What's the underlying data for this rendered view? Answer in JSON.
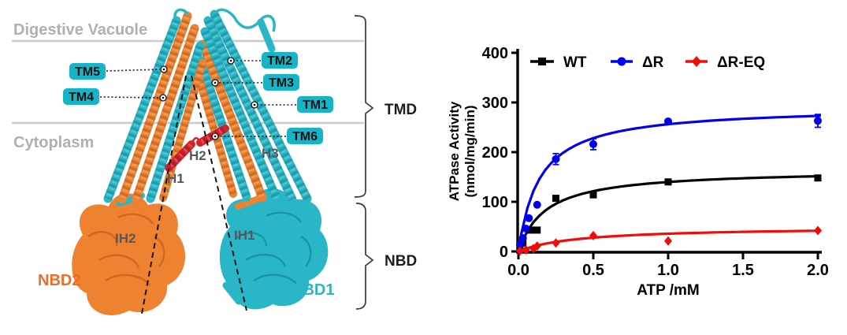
{
  "left_panel": {
    "membrane_labels": {
      "top": "Digestive Vacuole",
      "bottom": "Cytoplasm"
    },
    "tm_labels": {
      "tm1": "TM1",
      "tm2": "TM2",
      "tm3": "TM3",
      "tm4": "TM4",
      "tm5": "TM5",
      "tm6": "TM6"
    },
    "helix_labels": {
      "h1": "H1",
      "h2": "H2",
      "h3": "H3",
      "ih1": "IH1",
      "ih2": "IH2"
    },
    "domain_labels": {
      "nbd1": "NBD1",
      "nbd2": "NBD2"
    },
    "bracket_labels": {
      "tmd": "TMD",
      "nbd": "NBD"
    },
    "colors": {
      "cyan": "#29b7c8",
      "orange": "#ee8230",
      "red_helix": "#d6232b",
      "tm_label_bg": "#17b3c7",
      "membrane_text": "#aeb0b3",
      "membrane_line": "#c9cacc",
      "helix_label_text": "#54575b",
      "nbd1_text": "#29b7c8",
      "nbd2_text": "#f26a28"
    }
  },
  "chart_data": {
    "type": "scatter",
    "title": "",
    "xlabel": "ATP /mM",
    "ylabel_line1": "ATPase Activity",
    "ylabel_line2": "(nmol/mg/min)",
    "xlim": [
      0,
      2
    ],
    "ylim": [
      0,
      400
    ],
    "xticks": [
      "0.0",
      "0.5",
      "1.0",
      "1.5",
      "2.0"
    ],
    "yticks": [
      "400",
      "300",
      "200",
      "100",
      "0"
    ],
    "grid": false,
    "legend_position": "top-inside",
    "series": [
      {
        "name": "WT",
        "color": "#000000",
        "marker": "square",
        "x": [
          0.01,
          0.03,
          0.08,
          0.125,
          0.25,
          0.5,
          1.0,
          2.0
        ],
        "y": [
          9,
          17,
          43,
          43,
          107,
          114,
          140,
          148
        ],
        "yerr": [
          0,
          0,
          0,
          0,
          0,
          0,
          0,
          0
        ],
        "fit": {
          "vmax": 165,
          "km": 0.18
        }
      },
      {
        "name": "ΔR",
        "color": "#0000f0",
        "marker": "circle",
        "x": [
          0.01,
          0.03,
          0.05,
          0.07,
          0.125,
          0.25,
          0.5,
          1.0,
          2.0
        ],
        "y": [
          14,
          27,
          46,
          67,
          94,
          186,
          216,
          262,
          263
        ],
        "yerr": [
          0,
          0,
          0,
          0,
          0,
          11,
          11,
          0,
          13
        ],
        "fit": {
          "vmax": 292,
          "km": 0.14
        }
      },
      {
        "name": "ΔR-EQ",
        "color": "#f50a0a",
        "marker": "diamond",
        "x": [
          0.01,
          0.05,
          0.1,
          0.125,
          0.25,
          0.5,
          1.0,
          2.0
        ],
        "y": [
          1,
          3,
          6,
          11,
          17,
          32,
          21,
          42
        ],
        "yerr": [
          0,
          0,
          0,
          0,
          0,
          0,
          0,
          0
        ],
        "fit": {
          "vmax": 50,
          "km": 0.4
        }
      }
    ]
  }
}
